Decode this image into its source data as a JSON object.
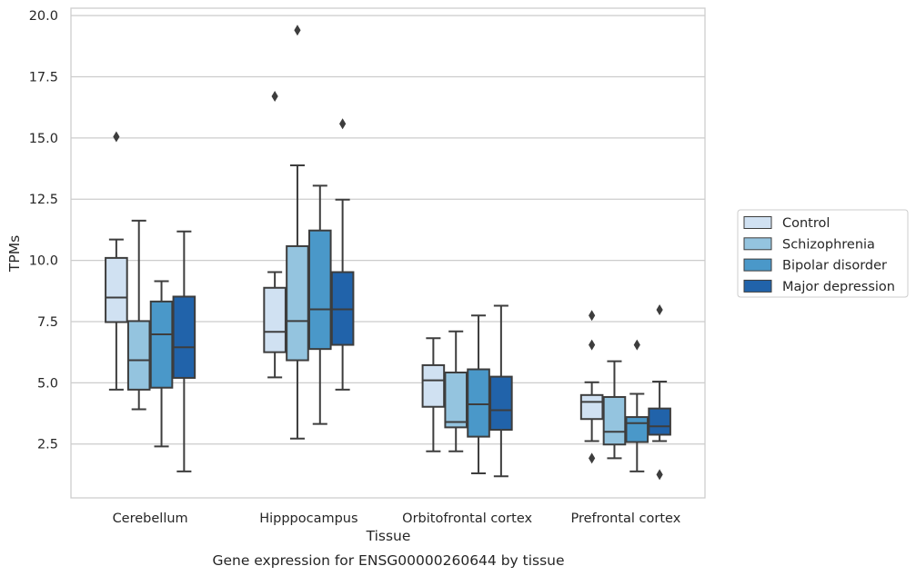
{
  "chart_data": {
    "type": "box",
    "title": "",
    "caption": "Gene expression for ENSG00000260644 by tissue",
    "xlabel": "Tissue",
    "ylabel": "TPMs",
    "ylim": [
      0.3,
      20.3
    ],
    "yticks": [
      2.5,
      5.0,
      7.5,
      10.0,
      12.5,
      15.0,
      17.5,
      20.0
    ],
    "ytick_labels": [
      "2.5",
      "5.0",
      "7.5",
      "10.0",
      "12.5",
      "15.0",
      "17.5",
      "20.0"
    ],
    "grid": "horizontal",
    "legend_position": "right",
    "categories": [
      "Cerebellum",
      "Hipppocampus",
      "Orbitofrontal cortex",
      "Prefrontal cortex"
    ],
    "series": [
      {
        "name": "Control",
        "color": "#d0e1f2",
        "boxes": [
          {
            "whisker_low": 4.72,
            "q1": 7.48,
            "median": 8.48,
            "q3": 10.1,
            "whisker_high": 10.85,
            "outliers": [
              15.05
            ]
          },
          {
            "whisker_low": 5.22,
            "q1": 6.25,
            "median": 7.08,
            "q3": 8.88,
            "whisker_high": 9.52,
            "outliers": [
              16.7
            ]
          },
          {
            "whisker_low": 2.2,
            "q1": 4.02,
            "median": 5.1,
            "q3": 5.72,
            "whisker_high": 6.82,
            "outliers": []
          },
          {
            "whisker_low": 2.62,
            "q1": 3.52,
            "median": 4.22,
            "q3": 4.5,
            "whisker_high": 5.02,
            "outliers": [
              7.75,
              6.55,
              1.92
            ]
          }
        ]
      },
      {
        "name": "Schizophrenia",
        "color": "#94c4df",
        "boxes": [
          {
            "whisker_low": 3.92,
            "q1": 4.72,
            "median": 5.92,
            "q3": 7.52,
            "whisker_high": 11.62,
            "outliers": []
          },
          {
            "whisker_low": 2.72,
            "q1": 5.92,
            "median": 7.52,
            "q3": 10.58,
            "whisker_high": 13.88,
            "outliers": [
              19.4
            ]
          },
          {
            "whisker_low": 2.2,
            "q1": 3.18,
            "median": 3.4,
            "q3": 5.42,
            "whisker_high": 7.1,
            "outliers": []
          },
          {
            "whisker_low": 1.92,
            "q1": 2.48,
            "median": 3.0,
            "q3": 4.42,
            "whisker_high": 5.88,
            "outliers": []
          }
        ]
      },
      {
        "name": "Bipolar disorder",
        "color": "#4a98c9",
        "boxes": [
          {
            "whisker_low": 2.4,
            "q1": 4.8,
            "median": 6.98,
            "q3": 8.32,
            "whisker_high": 9.15,
            "outliers": []
          },
          {
            "whisker_low": 3.32,
            "q1": 6.38,
            "median": 8.0,
            "q3": 11.22,
            "whisker_high": 13.05,
            "outliers": []
          },
          {
            "whisker_low": 1.3,
            "q1": 2.8,
            "median": 4.12,
            "q3": 5.55,
            "whisker_high": 7.75,
            "outliers": []
          },
          {
            "whisker_low": 1.38,
            "q1": 2.58,
            "median": 3.35,
            "q3": 3.6,
            "whisker_high": 4.55,
            "outliers": [
              6.55
            ]
          }
        ]
      },
      {
        "name": "Major depression",
        "color": "#2163aa",
        "boxes": [
          {
            "whisker_low": 1.38,
            "q1": 5.2,
            "median": 6.45,
            "q3": 8.52,
            "whisker_high": 11.18,
            "outliers": []
          },
          {
            "whisker_low": 4.72,
            "q1": 6.55,
            "median": 8.0,
            "q3": 9.52,
            "whisker_high": 12.48,
            "outliers": [
              15.58
            ]
          },
          {
            "whisker_low": 1.18,
            "q1": 3.08,
            "median": 3.88,
            "q3": 5.25,
            "whisker_high": 8.15,
            "outliers": []
          },
          {
            "whisker_low": 2.62,
            "q1": 2.88,
            "median": 3.22,
            "q3": 3.95,
            "whisker_high": 5.05,
            "outliers": [
              7.98,
              1.25
            ]
          }
        ]
      }
    ]
  }
}
